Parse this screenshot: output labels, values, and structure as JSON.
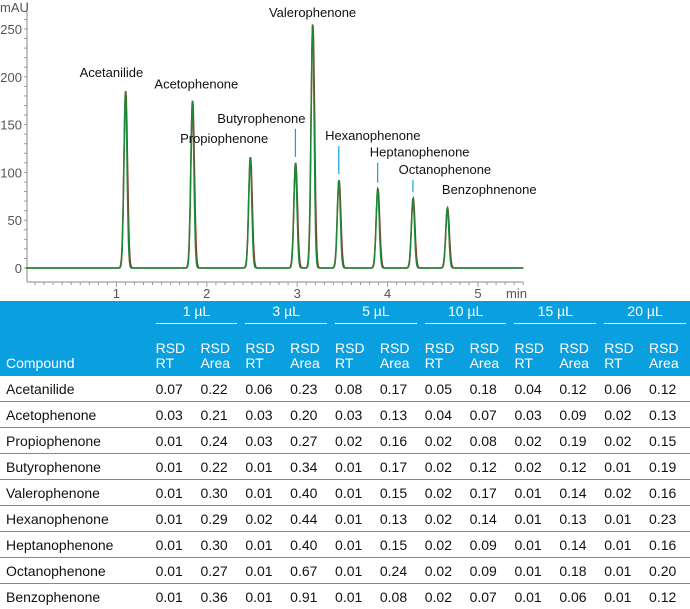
{
  "chart_data": {
    "type": "line",
    "title": "",
    "ylabel": "mAU",
    "xlabel": "min",
    "xlim": [
      0,
      5.5
    ],
    "ylim": [
      -10,
      265
    ],
    "xticks": [
      1,
      2,
      3,
      4,
      5
    ],
    "yticks": [
      0,
      50,
      100,
      150,
      200,
      250
    ],
    "series_colors": [
      "#8b3a2a",
      "#1a8a3a"
    ],
    "leader_color": "#1aa0e0",
    "peaks": [
      {
        "name": "Acetanilide",
        "rt": 1.1,
        "height": 185,
        "leader": false
      },
      {
        "name": "Acetophenone",
        "rt": 1.84,
        "height": 175,
        "leader": false
      },
      {
        "name": "Propiophenone",
        "rt": 2.48,
        "height": 116,
        "leader": false
      },
      {
        "name": "Butyrophenone",
        "rt": 2.98,
        "height": 110,
        "leader": true
      },
      {
        "name": "Valerophenone",
        "rt": 3.17,
        "height": 255,
        "leader": false
      },
      {
        "name": "Hexanophenone",
        "rt": 3.46,
        "height": 92,
        "leader": true
      },
      {
        "name": "Heptanophenone",
        "rt": 3.89,
        "height": 83,
        "leader": true
      },
      {
        "name": "Octanophenone",
        "rt": 4.28,
        "height": 73,
        "leader": true
      },
      {
        "name": "Benzophnenone",
        "rt": 4.66,
        "height": 63,
        "leader": false
      }
    ]
  },
  "table": {
    "compound_header": "Compound",
    "groups": [
      "1 µL",
      "3 µL",
      "5 µL",
      "10 µL",
      "15 µL",
      "20 µL"
    ],
    "sub1": [
      "RSD",
      "RSD"
    ],
    "sub2": [
      "RT",
      "Area"
    ],
    "rows": [
      {
        "compound": "Acetanilide",
        "values": [
          "0.07",
          "0.22",
          "0.06",
          "0.23",
          "0.08",
          "0.17",
          "0.05",
          "0.18",
          "0.04",
          "0.12",
          "0.06",
          "0.12"
        ]
      },
      {
        "compound": "Acetophenone",
        "values": [
          "0.03",
          "0.21",
          "0.03",
          "0.20",
          "0.03",
          "0.13",
          "0.04",
          "0.07",
          "0.03",
          "0.09",
          "0.02",
          "0.13"
        ]
      },
      {
        "compound": "Propiophenone",
        "values": [
          "0.01",
          "0.24",
          "0.03",
          "0.27",
          "0.02",
          "0.16",
          "0.02",
          "0.08",
          "0.02",
          "0.19",
          "0.02",
          "0.15"
        ]
      },
      {
        "compound": "Butyrophenone",
        "values": [
          "0.01",
          "0.22",
          "0.01",
          "0.34",
          "0.01",
          "0.17",
          "0.02",
          "0.12",
          "0.02",
          "0.12",
          "0.01",
          "0.19"
        ]
      },
      {
        "compound": "Valerophenone",
        "values": [
          "0.01",
          "0.30",
          "0.01",
          "0.40",
          "0.01",
          "0.15",
          "0.02",
          "0.17",
          "0.01",
          "0.14",
          "0.02",
          "0.16"
        ]
      },
      {
        "compound": "Hexanophenone",
        "values": [
          "0.01",
          "0.29",
          "0.02",
          "0.44",
          "0.01",
          "0.13",
          "0.02",
          "0.14",
          "0.01",
          "0.13",
          "0.01",
          "0.23"
        ]
      },
      {
        "compound": "Heptanophenone",
        "values": [
          "0.01",
          "0.30",
          "0.01",
          "0.40",
          "0.01",
          "0.15",
          "0.02",
          "0.09",
          "0.01",
          "0.14",
          "0.01",
          "0.16"
        ]
      },
      {
        "compound": "Octanophenone",
        "values": [
          "0.01",
          "0.27",
          "0.01",
          "0.67",
          "0.01",
          "0.24",
          "0.02",
          "0.09",
          "0.01",
          "0.18",
          "0.01",
          "0.20"
        ]
      },
      {
        "compound": "Benzophenone",
        "values": [
          "0.01",
          "0.36",
          "0.01",
          "0.91",
          "0.01",
          "0.08",
          "0.02",
          "0.07",
          "0.01",
          "0.06",
          "0.01",
          "0.12"
        ]
      }
    ]
  }
}
